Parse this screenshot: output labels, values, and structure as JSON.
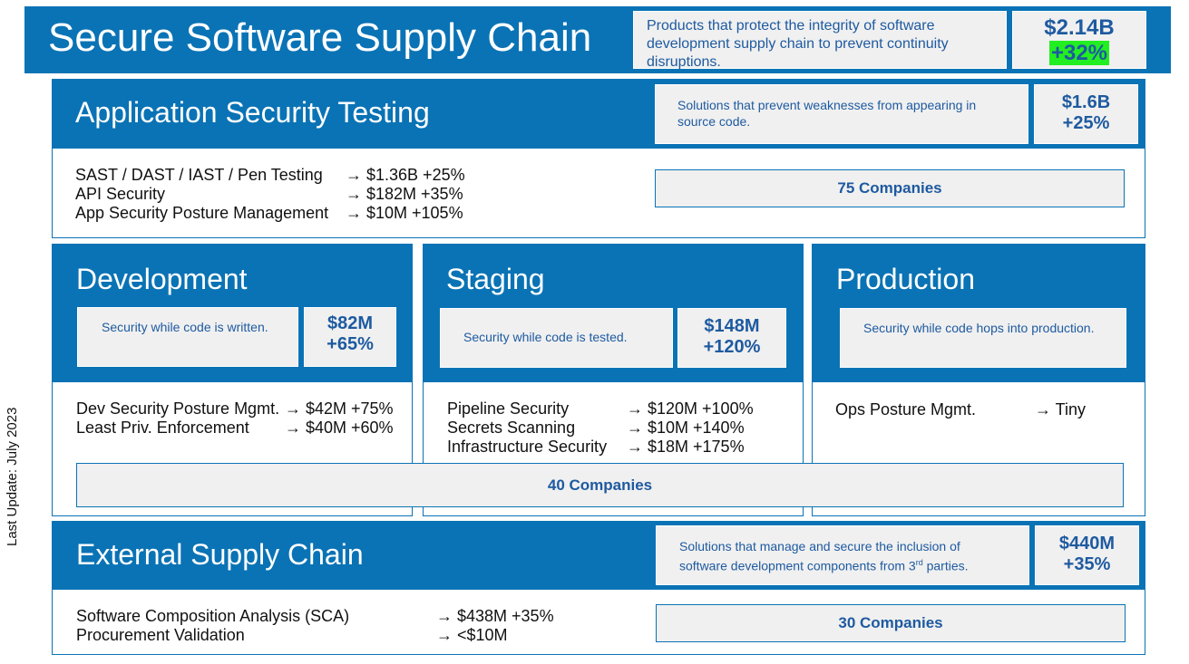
{
  "side_note": "Last Update: July 2023",
  "header": {
    "title": "Secure Software Supply Chain",
    "description": "Products that protect the integrity of software development supply chain to prevent continuity disruptions.",
    "value": "$2.14B",
    "growth": "+32%",
    "growth_highlight_color": "#22ee22"
  },
  "ast": {
    "title": "Application Security Testing",
    "description": "Solutions that prevent weaknesses from appearing in source code.",
    "value": "$1.6B",
    "growth": "+25%",
    "items": [
      {
        "label": "SAST / DAST / IAST / Pen Testing",
        "value": "→ $1.36B +25%"
      },
      {
        "label": "API Security",
        "value": "→ $182M +35%"
      },
      {
        "label": "App Security Posture Management",
        "value": "→ $10M +105%"
      }
    ],
    "companies": "75 Companies"
  },
  "development": {
    "title": "Development",
    "description": "Security while code is written.",
    "value": "$82M",
    "growth": "+65%",
    "items": [
      {
        "label": "Dev Security Posture Mgmt.",
        "value": "→ $42M +75%"
      },
      {
        "label": "Least Priv. Enforcement",
        "value": "→ $40M +60%"
      }
    ]
  },
  "staging": {
    "title": "Staging",
    "description": "Security while code is tested.",
    "value": "$148M",
    "growth": "+120%",
    "items": [
      {
        "label": "Pipeline Security",
        "value": "→ $120M +100%"
      },
      {
        "label": "Secrets Scanning",
        "value": "→ $10M +140%"
      },
      {
        "label": "Infrastructure Security",
        "value": "→ $18M +175%"
      }
    ]
  },
  "production": {
    "title": "Production",
    "description": "Security while code hops into production.",
    "items": [
      {
        "label": "Ops Posture Mgmt.",
        "value": "→ Tiny"
      }
    ]
  },
  "middle_companies": "40 Companies",
  "external": {
    "title": "External Supply Chain",
    "description_1": "Solutions that manage and secure the inclusion of",
    "description_2": "software development components from 3",
    "description_sup": "rd",
    "description_3": " parties.",
    "value": "$440M",
    "growth": "+35%",
    "items": [
      {
        "label": "Software Composition Analysis (SCA)",
        "value": "→ $438M +35%"
      },
      {
        "label": "Procurement Validation",
        "value": "→ <$10M"
      }
    ],
    "companies": "30 Companies"
  },
  "colors": {
    "primary_blue": "#0a73b5",
    "text_blue": "#1e5aa0",
    "box_gray": "#f0f0f0"
  }
}
